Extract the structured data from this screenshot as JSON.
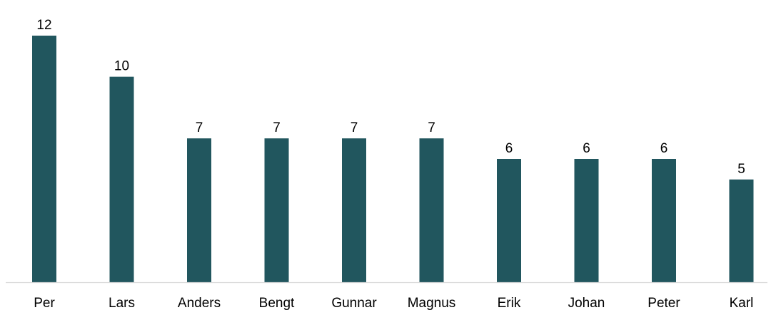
{
  "chart_data": {
    "type": "bar",
    "title": "",
    "xlabel": "",
    "ylabel": "",
    "categories": [
      "Per",
      "Lars",
      "Anders",
      "Bengt",
      "Gunnar",
      "Magnus",
      "Erik",
      "Johan",
      "Peter",
      "Karl"
    ],
    "values": [
      12,
      10,
      7,
      7,
      7,
      7,
      6,
      6,
      6,
      5
    ],
    "ylim": [
      0,
      12
    ],
    "grid": false,
    "legend": "none",
    "data_labels": true,
    "bar_color": "#21565E",
    "axis_color": "#D9D9D9",
    "text_color": "#000000"
  }
}
